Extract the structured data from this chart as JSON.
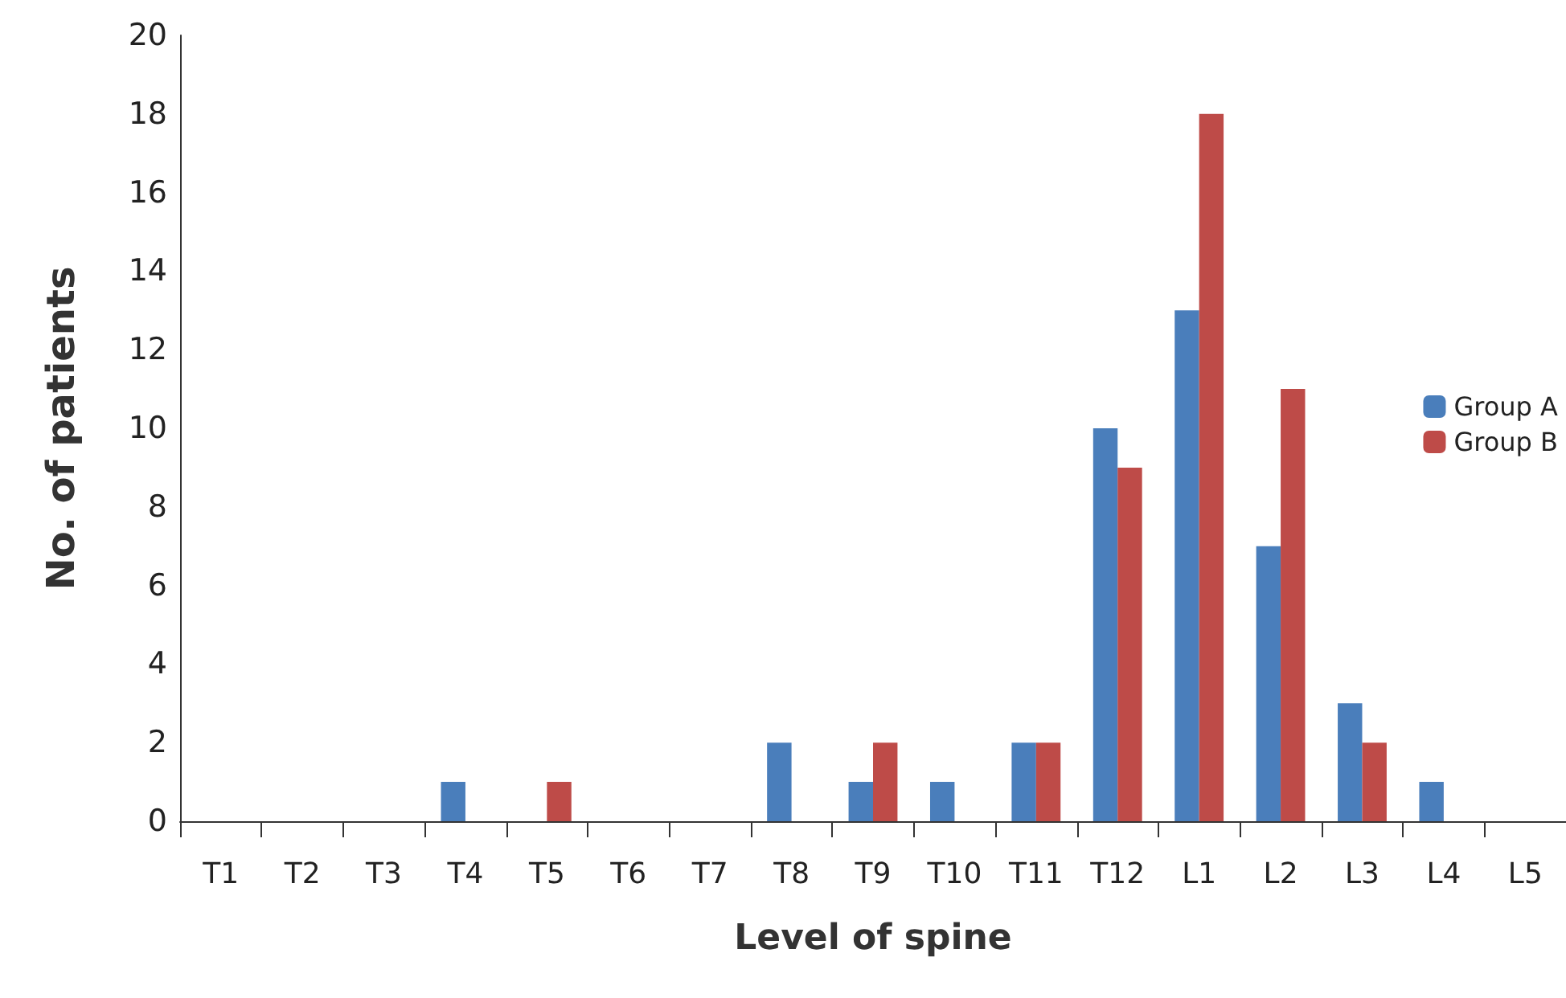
{
  "chart_data": {
    "type": "bar",
    "xlabel": "Level of spine",
    "ylabel": "No. of patients",
    "categories": [
      "T1",
      "T2",
      "T3",
      "T4",
      "T5",
      "T6",
      "T7",
      "T8",
      "T9",
      "T10",
      "T11",
      "T12",
      "L1",
      "L2",
      "L3",
      "L4",
      "L5"
    ],
    "series": [
      {
        "name": "Group A",
        "color": "#4a7ebb",
        "values": [
          0,
          0,
          0,
          1,
          0,
          0,
          0,
          2,
          1,
          1,
          2,
          10,
          13,
          7,
          3,
          1,
          0
        ]
      },
      {
        "name": "Group B",
        "color": "#be4b48",
        "values": [
          0,
          0,
          0,
          0,
          1,
          0,
          0,
          0,
          2,
          0,
          2,
          9,
          18,
          11,
          2,
          0,
          0
        ]
      }
    ],
    "ylim": [
      0,
      20
    ],
    "yticks": [
      0,
      2,
      4,
      6,
      8,
      10,
      12,
      14,
      16,
      18,
      20
    ],
    "grid": false,
    "legend": "right"
  }
}
